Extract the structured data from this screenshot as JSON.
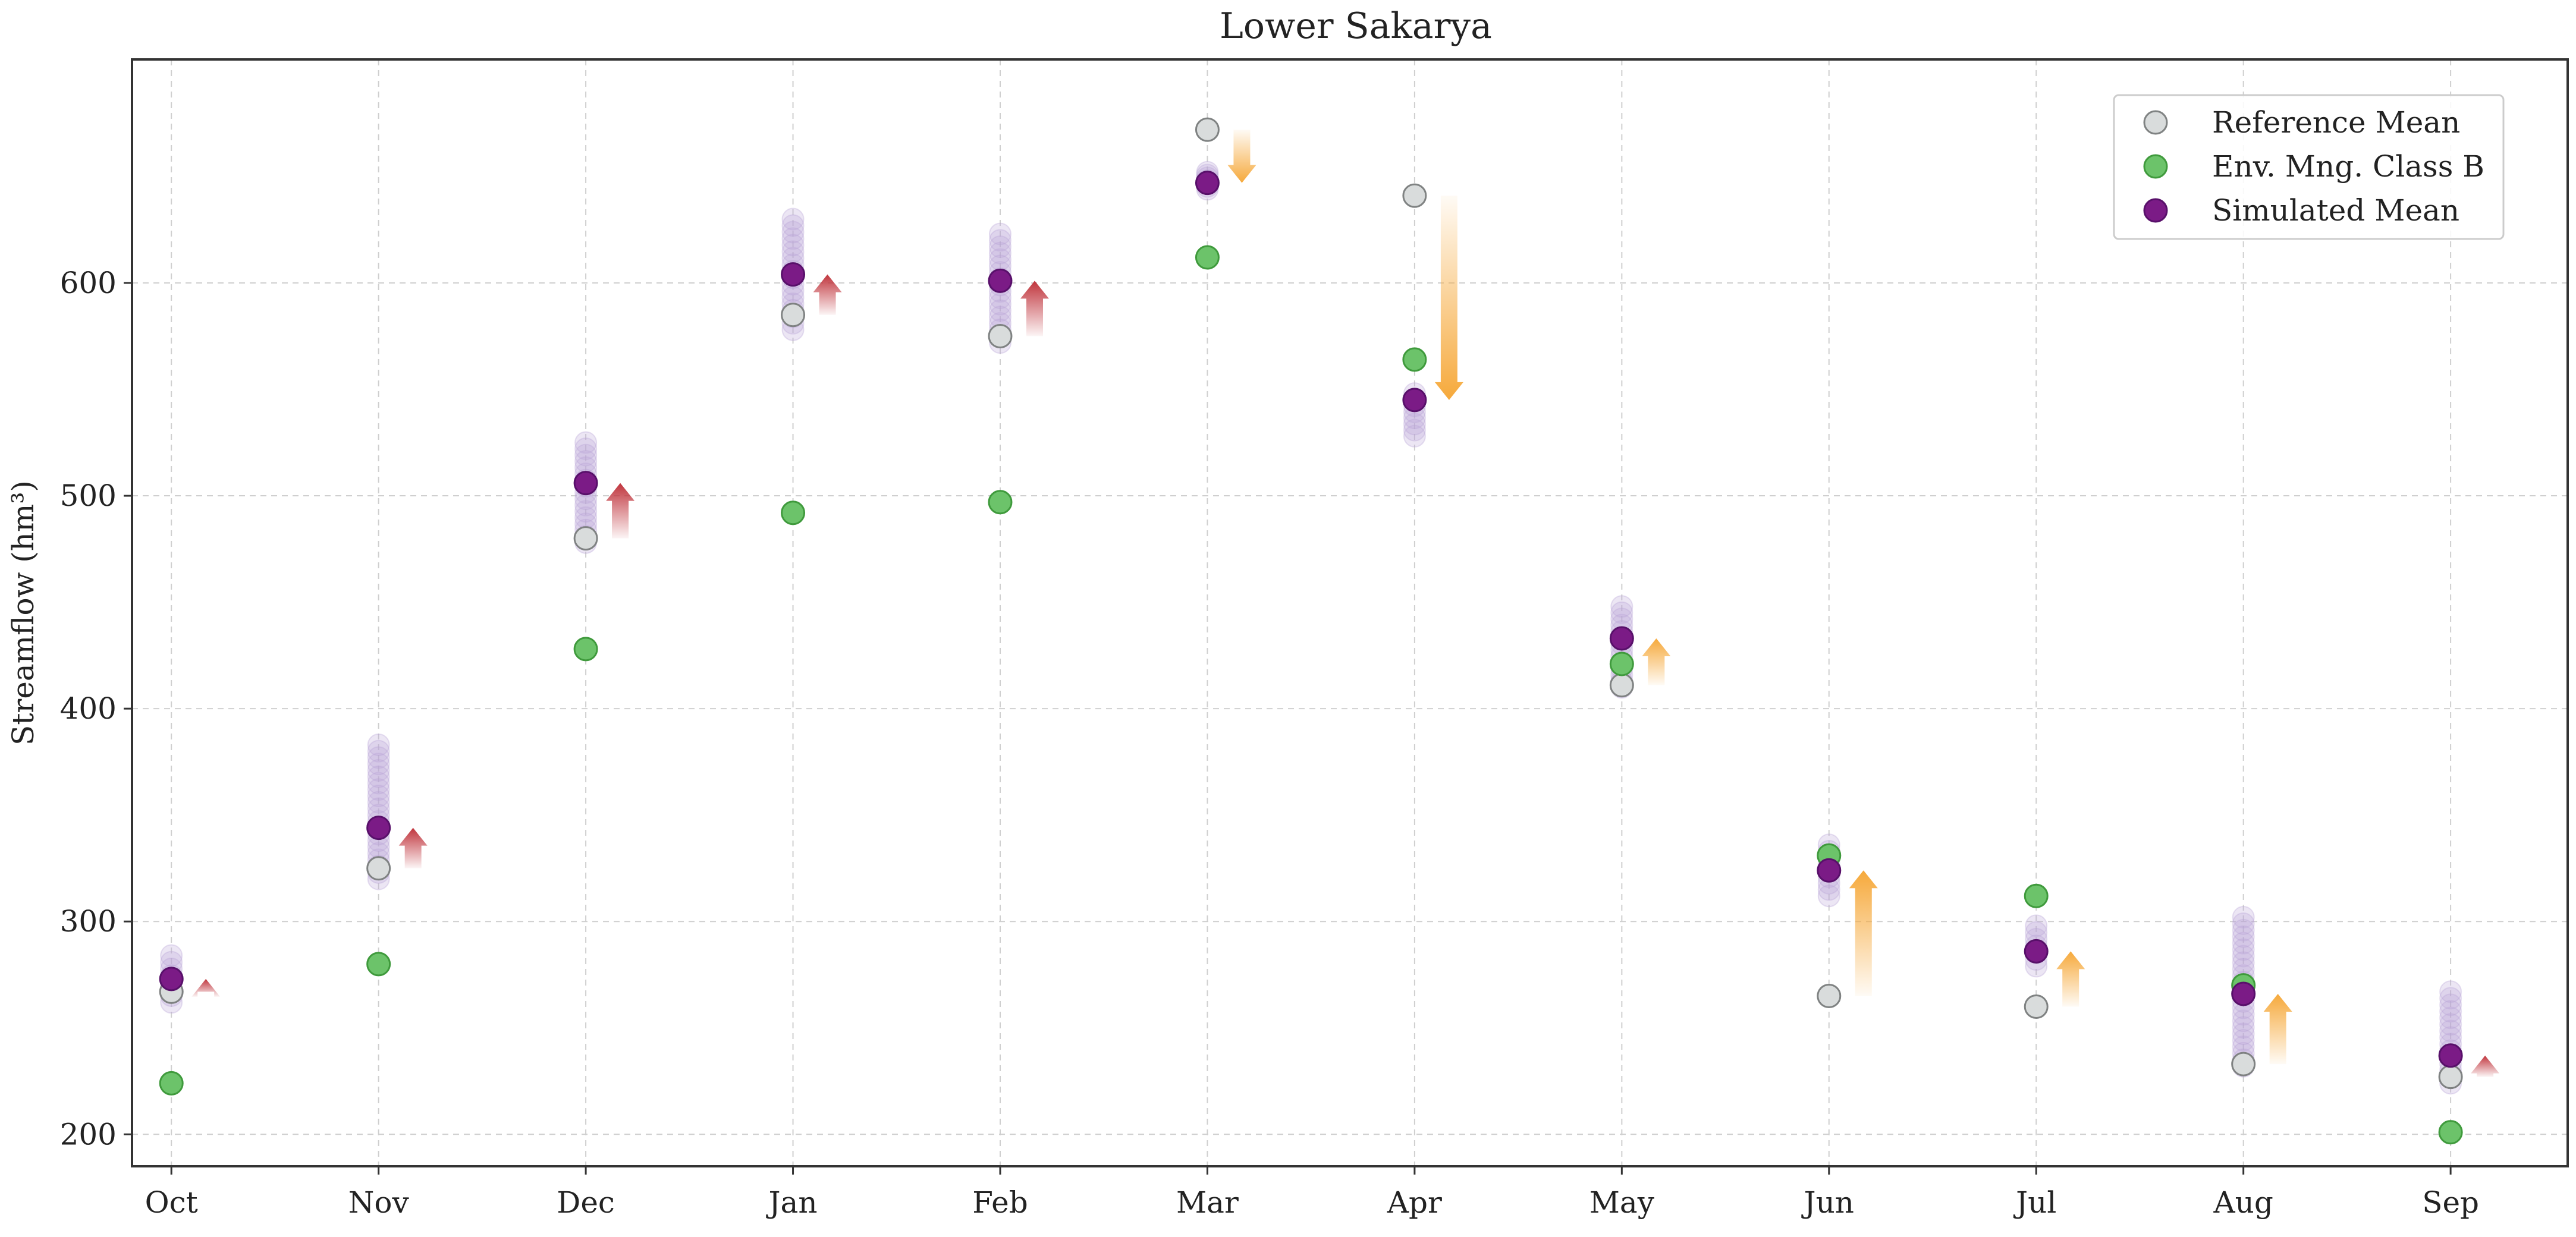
{
  "chart_data": {
    "type": "scatter",
    "title": "Lower Sakarya",
    "xlabel": "",
    "ylabel": "Streamflow (hm³)",
    "ylim": [
      185,
      705
    ],
    "yticks": [
      200,
      300,
      400,
      500,
      600
    ],
    "grid": true,
    "legend_position": "top-right",
    "categories": [
      "Oct",
      "Nov",
      "Dec",
      "Jan",
      "Feb",
      "Mar",
      "Apr",
      "May",
      "Jun",
      "Jul",
      "Aug",
      "Sep"
    ],
    "series": [
      {
        "name": "Reference Mean",
        "values": [
          267,
          325,
          480,
          585,
          575,
          672,
          641,
          411,
          265,
          260,
          233,
          227
        ]
      },
      {
        "name": "Env. Mng. Class B",
        "values": [
          224,
          280,
          428,
          492,
          497,
          612,
          564,
          421,
          331,
          312,
          270,
          201
        ]
      },
      {
        "name": "Simulated Mean",
        "values": [
          273,
          344,
          506,
          604,
          601,
          647,
          545,
          433,
          324,
          286,
          266,
          237
        ]
      }
    ],
    "ensemble_ranges": [
      [
        262,
        284
      ],
      [
        320,
        383
      ],
      [
        478,
        525
      ],
      [
        578,
        630
      ],
      [
        572,
        623
      ],
      [
        644,
        652
      ],
      [
        528,
        548
      ],
      [
        410,
        448
      ],
      [
        312,
        336
      ],
      [
        279,
        298
      ],
      [
        232,
        302
      ],
      [
        224,
        267
      ]
    ],
    "change_arrows": [
      {
        "from": 267,
        "to": 273,
        "direction": "up",
        "color": "#c0343c"
      },
      {
        "from": 325,
        "to": 344,
        "direction": "up",
        "color": "#c0343c"
      },
      {
        "from": 480,
        "to": 506,
        "direction": "up",
        "color": "#c0343c"
      },
      {
        "from": 585,
        "to": 604,
        "direction": "up",
        "color": "#c0343c"
      },
      {
        "from": 575,
        "to": 601,
        "direction": "up",
        "color": "#c0343c"
      },
      {
        "from": 672,
        "to": 647,
        "direction": "down",
        "color": "#f6a93b"
      },
      {
        "from": 641,
        "to": 545,
        "direction": "down",
        "color": "#f6a93b"
      },
      {
        "from": 411,
        "to": 433,
        "direction": "up",
        "color": "#f6a93b"
      },
      {
        "from": 265,
        "to": 324,
        "direction": "up",
        "color": "#f6a93b"
      },
      {
        "from": 260,
        "to": 286,
        "direction": "up",
        "color": "#f6a93b"
      },
      {
        "from": 233,
        "to": 266,
        "direction": "up",
        "color": "#f6a93b"
      },
      {
        "from": 227,
        "to": 237,
        "direction": "up",
        "color": "#c0343c"
      }
    ],
    "colors": {
      "reference": "#d9dcdc",
      "reference_edge": "#7f8282",
      "env_class_b": "#6cc36a",
      "env_class_b_edge": "#3f9a3c",
      "simulated": "#7b1b86",
      "simulated_edge": "#58106a",
      "ensemble": "#b9a5d6"
    }
  }
}
